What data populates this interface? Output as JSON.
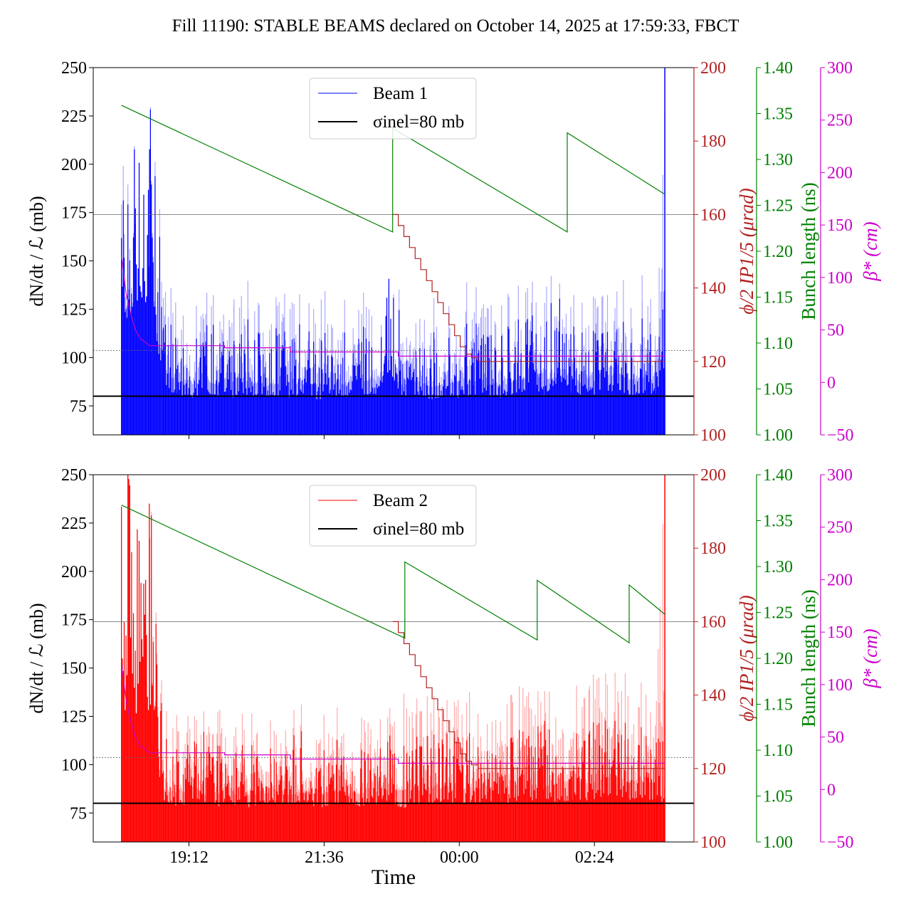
{
  "title": "Fill 11190: STABLE BEAMS declared on October 14, 2025 at 17:59:33, FBCT",
  "colors": {
    "beam1": "#0000ff",
    "beam1_light": "#aaaaff",
    "beam2": "#ff0000",
    "beam2_light": "#ffaaaa",
    "angle": "#b22222",
    "bunch": "#008000",
    "beta": "#cc00cc",
    "ref": "#000000"
  },
  "chart_data": [
    {
      "type": "line",
      "panel": "top",
      "legend": {
        "placement": "upper-center",
        "entries": [
          "Beam 1",
          "σinel=80 mb"
        ]
      },
      "xlabel": "",
      "xlim": [
        "17:30",
        "04:10"
      ],
      "xticks": [
        "19:12",
        "21:36",
        "00:00",
        "02:24"
      ],
      "show_xticklabels": false,
      "axes": {
        "left": {
          "label": "dN/dt / ℒ (mb)",
          "lim": [
            60,
            250
          ],
          "ticks": [
            75,
            100,
            125,
            150,
            175,
            200,
            225,
            250
          ]
        },
        "angle": {
          "label": "ϕ/2 IP1/5 (μrad)",
          "lim": [
            100,
            200
          ],
          "ticks": [
            100,
            120,
            140,
            160,
            180,
            200
          ]
        },
        "bunch": {
          "label": "Bunch length (ns)",
          "lim": [
            1.0,
            1.4
          ],
          "ticks": [
            "1.00",
            "1.05",
            "1.10",
            "1.15",
            "1.20",
            "1.25",
            "1.30",
            "1.35",
            "1.40"
          ]
        },
        "beta": {
          "label": "β* (cm)",
          "lim": [
            -50,
            300
          ],
          "ticks": [
            -50,
            0,
            50,
            100,
            150,
            200,
            250,
            300
          ]
        }
      },
      "sigma_inel": 80,
      "ref_lines": [
        {
          "axis": "angle",
          "value": 160,
          "style": "solid"
        },
        {
          "axis": "angle",
          "value": 123,
          "style": "dotted"
        }
      ],
      "rate": {
        "name": "Beam 1",
        "times": [
          "18:00",
          "18:15",
          "18:30",
          "18:45",
          "19:00",
          "19:15",
          "19:30",
          "19:45",
          "20:00",
          "20:15",
          "20:30",
          "20:45",
          "21:00",
          "21:15",
          "21:30",
          "21:45",
          "22:00",
          "22:15",
          "22:30",
          "22:45",
          "23:00",
          "23:15",
          "23:30",
          "23:45",
          "00:00",
          "00:15",
          "00:30",
          "00:45",
          "01:00",
          "01:15",
          "01:30",
          "01:45",
          "02:00",
          "02:15",
          "02:30",
          "02:45",
          "03:00",
          "03:15",
          "03:30",
          "03:39"
        ],
        "max": [
          222,
          250,
          250,
          130,
          118,
          115,
          120,
          118,
          112,
          120,
          115,
          118,
          115,
          120,
          112,
          118,
          115,
          120,
          118,
          155,
          115,
          120,
          112,
          118,
          115,
          120,
          118,
          115,
          120,
          125,
          118,
          138,
          122,
          118,
          120,
          125,
          118,
          122,
          120,
          145
        ],
        "light_max": [
          250,
          250,
          250,
          150,
          140,
          135,
          138,
          132,
          135,
          140,
          130,
          135,
          138,
          132,
          135,
          140,
          132,
          138,
          140,
          150,
          132,
          140,
          130,
          135,
          138,
          140,
          135,
          132,
          138,
          142,
          140,
          145,
          140,
          135,
          142,
          148,
          140,
          145,
          140,
          250
        ]
      },
      "bunch_length": {
        "times": [
          "18:00",
          "22:49",
          "22:49",
          "01:55",
          "01:55",
          "03:39"
        ],
        "values": [
          1.359,
          1.221,
          1.334,
          1.221,
          1.329,
          1.262
        ]
      },
      "crossing_angle": {
        "times": [
          "22:49",
          "22:55",
          "23:01",
          "23:07",
          "23:13",
          "23:19",
          "23:25",
          "23:31",
          "23:37",
          "23:43",
          "23:49",
          "23:55",
          "00:01",
          "00:07",
          "00:13",
          "00:20",
          "03:39"
        ],
        "values": [
          160,
          157,
          154,
          151,
          148,
          145,
          142,
          139,
          136,
          133,
          130,
          127,
          124,
          122,
          121,
          120,
          120
        ]
      },
      "beta_star": {
        "times": [
          "18:00",
          "18:05",
          "18:10",
          "18:15",
          "18:20",
          "18:30",
          "19:50",
          "19:50",
          "21:00",
          "21:00",
          "22:55",
          "22:55",
          "03:39"
        ],
        "values": [
          120,
          85,
          65,
          50,
          42,
          35,
          35,
          33,
          33,
          29,
          29,
          25,
          25
        ]
      }
    },
    {
      "type": "line",
      "panel": "bottom",
      "legend": {
        "placement": "upper-center",
        "entries": [
          "Beam 2",
          "σinel=80 mb"
        ]
      },
      "xlabel": "Time",
      "xlim": [
        "17:30",
        "04:10"
      ],
      "xticks": [
        "19:12",
        "21:36",
        "00:00",
        "02:24"
      ],
      "show_xticklabels": true,
      "axes": {
        "left": {
          "label": "dN/dt / ℒ (mb)",
          "lim": [
            60,
            250
          ],
          "ticks": [
            75,
            100,
            125,
            150,
            175,
            200,
            225,
            250
          ]
        },
        "angle": {
          "label": "ϕ/2 IP1/5 (μrad)",
          "lim": [
            100,
            200
          ],
          "ticks": [
            100,
            120,
            140,
            160,
            180,
            200
          ]
        },
        "bunch": {
          "label": "Bunch length (ns)",
          "lim": [
            1.0,
            1.4
          ],
          "ticks": [
            "1.00",
            "1.05",
            "1.10",
            "1.15",
            "1.20",
            "1.25",
            "1.30",
            "1.35",
            "1.40"
          ]
        },
        "beta": {
          "label": "β* (cm)",
          "lim": [
            -50,
            300
          ],
          "ticks": [
            -50,
            0,
            50,
            100,
            150,
            200,
            250,
            300
          ]
        }
      },
      "sigma_inel": 80,
      "ref_lines": [
        {
          "axis": "angle",
          "value": 160,
          "style": "solid"
        },
        {
          "axis": "angle",
          "value": 123,
          "style": "dotted"
        }
      ],
      "rate": {
        "name": "Beam 2",
        "times": [
          "18:00",
          "18:15",
          "18:30",
          "18:45",
          "19:00",
          "19:15",
          "19:30",
          "19:45",
          "20:00",
          "20:15",
          "20:30",
          "20:45",
          "21:00",
          "21:15",
          "21:30",
          "21:45",
          "22:00",
          "22:15",
          "22:30",
          "22:45",
          "23:00",
          "23:15",
          "23:30",
          "23:45",
          "00:00",
          "00:15",
          "00:30",
          "00:45",
          "01:00",
          "01:15",
          "01:30",
          "01:45",
          "02:00",
          "02:15",
          "02:30",
          "02:45",
          "03:00",
          "03:15",
          "03:30",
          "03:39"
        ],
        "max": [
          250,
          250,
          250,
          120,
          112,
          115,
          118,
          112,
          115,
          110,
          118,
          112,
          115,
          118,
          110,
          115,
          118,
          112,
          115,
          118,
          110,
          115,
          118,
          120,
          115,
          118,
          120,
          115,
          118,
          120,
          125,
          118,
          122,
          120,
          125,
          128,
          122,
          125,
          120,
          110
        ],
        "light_max": [
          250,
          250,
          250,
          135,
          132,
          130,
          128,
          132,
          130,
          128,
          132,
          130,
          128,
          132,
          130,
          135,
          132,
          130,
          135,
          132,
          138,
          135,
          140,
          138,
          135,
          140,
          138,
          142,
          140,
          145,
          140,
          148,
          150,
          145,
          150,
          155,
          148,
          150,
          145,
          250
        ]
      },
      "bunch_length": {
        "times": [
          "18:00",
          "23:02",
          "23:02",
          "01:23",
          "01:23",
          "03:01",
          "03:01",
          "03:39"
        ],
        "values": [
          1.367,
          1.222,
          1.305,
          1.22,
          1.285,
          1.217,
          1.28,
          1.248
        ]
      },
      "crossing_angle": {
        "times": [
          "22:49",
          "22:55",
          "23:01",
          "23:07",
          "23:13",
          "23:19",
          "23:25",
          "23:31",
          "23:37",
          "23:43",
          "23:49",
          "23:55",
          "00:01",
          "00:07",
          "00:13",
          "00:20",
          "03:39"
        ],
        "values": [
          160,
          157,
          154,
          151,
          148,
          145,
          142,
          139,
          136,
          133,
          130,
          127,
          124,
          122,
          121,
          120,
          120
        ]
      },
      "beta_star": {
        "times": [
          "18:00",
          "18:05",
          "18:10",
          "18:15",
          "18:20",
          "18:30",
          "19:50",
          "19:50",
          "21:00",
          "21:00",
          "22:55",
          "22:55",
          "03:39"
        ],
        "values": [
          120,
          85,
          65,
          50,
          42,
          35,
          35,
          33,
          33,
          29,
          29,
          25,
          25
        ]
      }
    }
  ]
}
